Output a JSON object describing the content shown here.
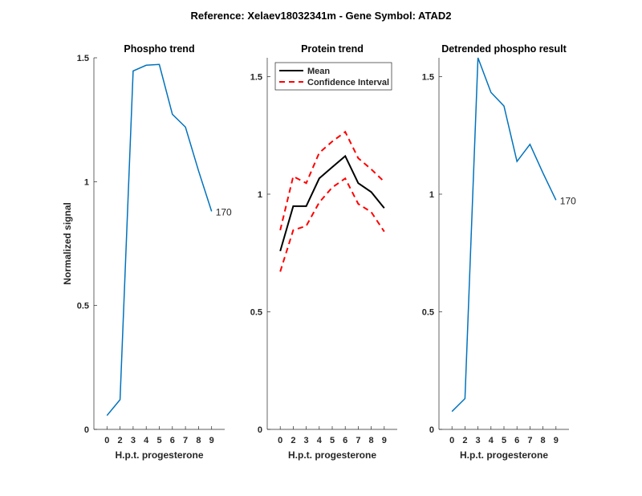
{
  "figure_title": "Reference:  Xelaev18032341m - Gene Symbol:  ATAD2",
  "colors": {
    "blue": "#0072BD",
    "red": "#FF0000",
    "black": "#000000",
    "axis": "#262626"
  },
  "chart_data": [
    {
      "type": "line",
      "title": "Phospho trend",
      "xlabel": "H.p.t. progesterone",
      "ylabel": "Normalized signal",
      "categories": [
        "0",
        "2",
        "3",
        "4",
        "5",
        "6",
        "7",
        "8",
        "9"
      ],
      "ylim": [
        0,
        1.5
      ],
      "yticks": [
        "0",
        "0.5",
        "1",
        "1.5"
      ],
      "series": [
        {
          "name": "phospho",
          "color": "#0072BD",
          "style": "solid",
          "values": [
            0.056,
            0.12,
            1.447,
            1.47,
            1.473,
            1.272,
            1.22,
            1.044,
            0.88
          ]
        }
      ],
      "annotation": "170"
    },
    {
      "type": "line",
      "title": "Protein trend",
      "xlabel": "H.p.t. progesterone",
      "ylabel": "",
      "categories": [
        "0",
        "2",
        "3",
        "4",
        "5",
        "6",
        "7",
        "8",
        "9"
      ],
      "ylim": [
        0,
        1.58
      ],
      "yticks": [
        "0",
        "0.5",
        "1",
        "1.5"
      ],
      "legend": {
        "placement": "top-left",
        "entries": [
          "Mean",
          "Confidence Interval"
        ]
      },
      "series": [
        {
          "name": "Mean",
          "color": "#000000",
          "style": "solid",
          "values": [
            0.758,
            0.949,
            0.949,
            1.067,
            1.115,
            1.162,
            1.047,
            1.009,
            0.941
          ]
        },
        {
          "name": "Confidence Interval (upper)",
          "color": "#FF0000",
          "style": "dashed",
          "values": [
            0.847,
            1.076,
            1.047,
            1.176,
            1.224,
            1.265,
            1.153,
            1.106,
            1.053
          ]
        },
        {
          "name": "Confidence Interval (lower)",
          "color": "#FF0000",
          "style": "dashed",
          "values": [
            0.671,
            0.847,
            0.865,
            0.965,
            1.029,
            1.067,
            0.959,
            0.924,
            0.841
          ]
        }
      ]
    },
    {
      "type": "line",
      "title": "Detrended phospho result",
      "xlabel": "H.p.t. progesterone",
      "ylabel": "",
      "categories": [
        "0",
        "2",
        "3",
        "4",
        "5",
        "6",
        "7",
        "8",
        "9"
      ],
      "ylim": [
        0,
        1.58
      ],
      "yticks": [
        "0",
        "0.5",
        "1",
        "1.5"
      ],
      "series": [
        {
          "name": "detrended",
          "color": "#0072BD",
          "style": "solid",
          "values": [
            0.076,
            0.131,
            1.58,
            1.433,
            1.375,
            1.139,
            1.212,
            1.09,
            0.975
          ]
        }
      ],
      "annotation": "170"
    }
  ]
}
